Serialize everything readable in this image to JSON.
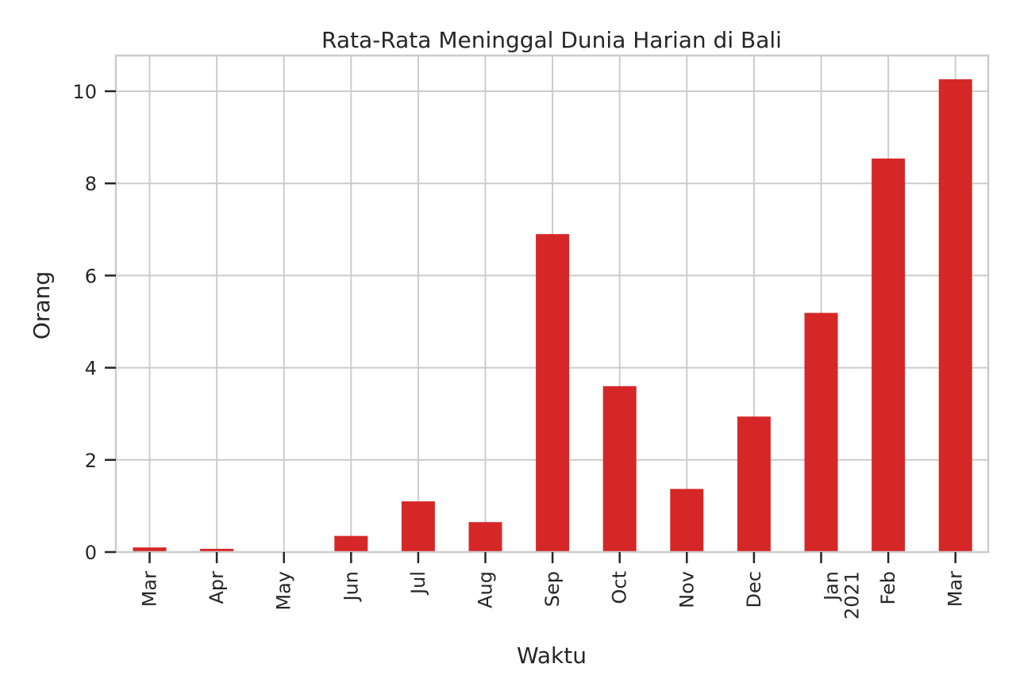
{
  "chart_data": {
    "type": "bar",
    "title": "Rata-Rata Meninggal Dunia Harian di Bali",
    "xlabel": "Waktu",
    "ylabel": "Orang",
    "categories": [
      "Mar",
      "Apr",
      "May",
      "Jun",
      "Jul",
      "Aug",
      "Sep",
      "Oct",
      "Nov",
      "Dec",
      "Jan\n2021",
      "Feb",
      "Mar"
    ],
    "values": [
      0.1,
      0.07,
      0.0,
      0.35,
      1.1,
      0.65,
      6.9,
      3.6,
      1.37,
      2.94,
      5.19,
      8.54,
      10.26
    ],
    "ylim": [
      0,
      10.8
    ],
    "yticks": [
      0,
      2,
      4,
      6,
      8,
      10
    ],
    "grid": true,
    "color": "#d62728"
  }
}
